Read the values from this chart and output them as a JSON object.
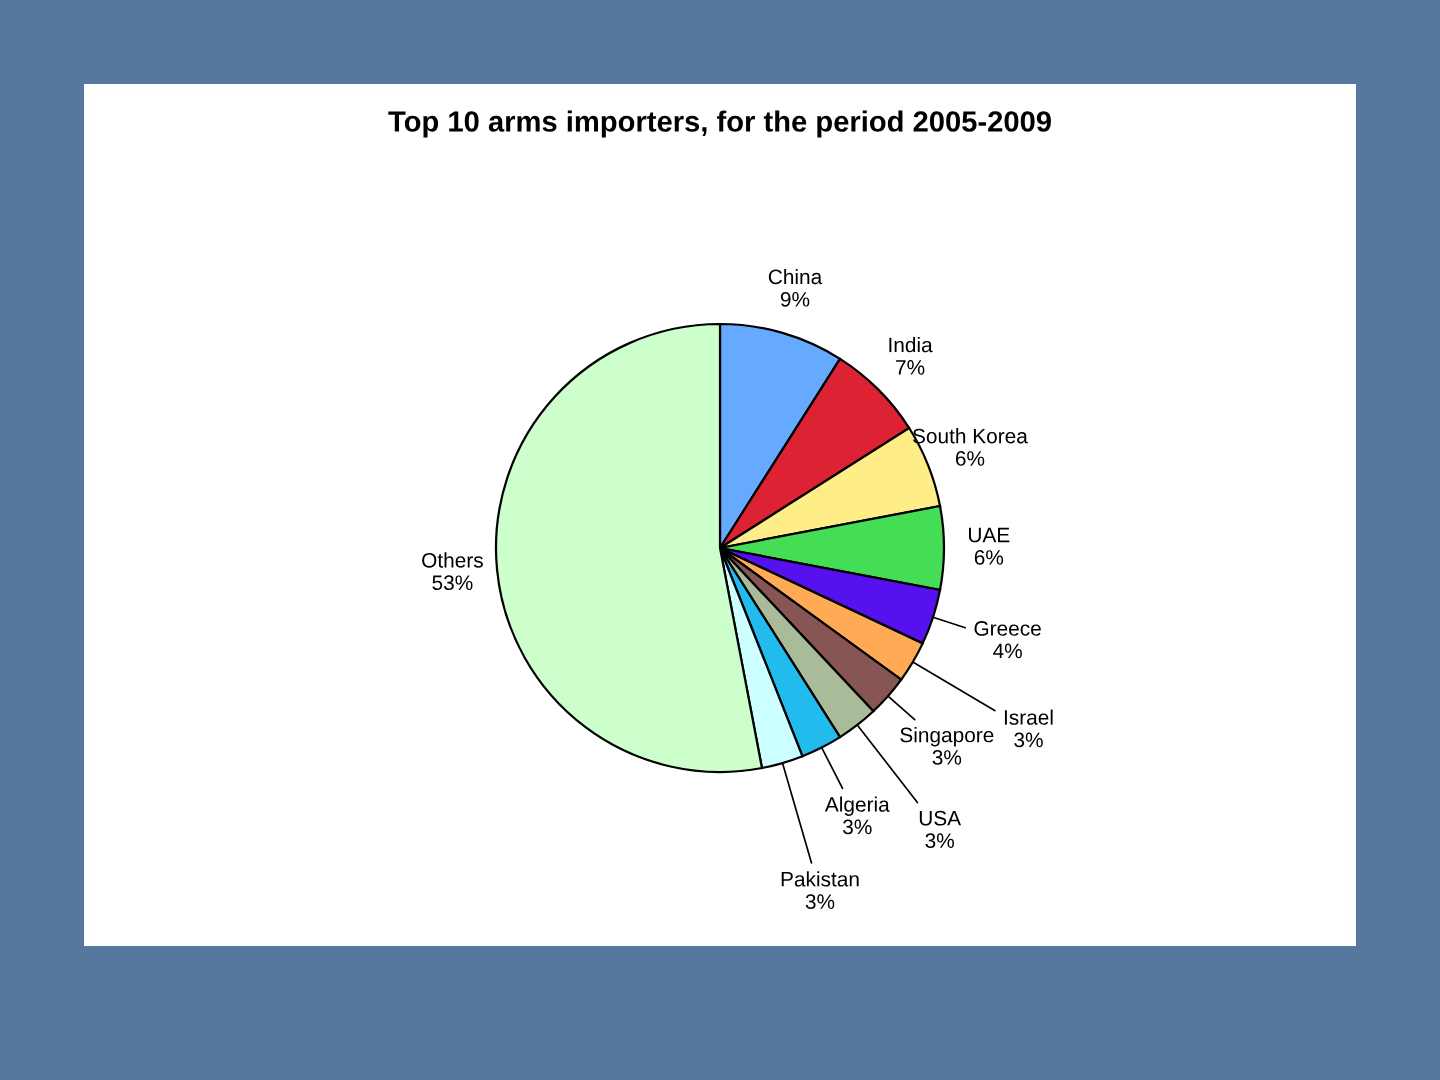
{
  "chart_data": {
    "type": "pie",
    "title": "Top 10 arms importers, for the period 2005-2009",
    "categories": [
      "China",
      "India",
      "South Korea",
      "UAE",
      "Greece",
      "Israel",
      "Singapore",
      "USA",
      "Algeria",
      "Pakistan",
      "Others"
    ],
    "values": [
      9,
      7,
      6,
      6,
      4,
      3,
      3,
      3,
      3,
      3,
      53
    ],
    "value_labels": [
      "9%",
      "7%",
      "6%",
      "6%",
      "4%",
      "3%",
      "3%",
      "3%",
      "3%",
      "3%",
      "53%"
    ],
    "colors": [
      "#66aaff",
      "#dd2233",
      "#ffee88",
      "#44dd55",
      "#5511ee",
      "#ffaa55",
      "#885555",
      "#aabb99",
      "#22bbee",
      "#ccffff",
      "#ccffcc"
    ]
  }
}
